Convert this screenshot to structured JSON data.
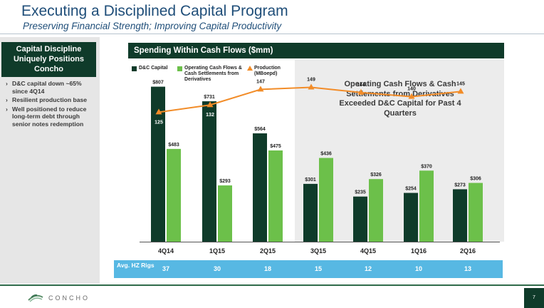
{
  "header": {
    "title": "Executing a Disciplined Capital Program",
    "subtitle": "Preserving Financial Strength; Improving Capital Productivity"
  },
  "left_panel": {
    "heading": "Capital Discipline Uniquely Positions Concho",
    "bullets": [
      "D&C capital down ~65% since 4Q14",
      "Resilient production base",
      "Well positioned to reduce long-term debt through senior notes redemption"
    ]
  },
  "chart_header": "Spending Within Cash Flows ($mm)",
  "legend": {
    "dc": "D&C Capital",
    "ocf": "Operating Cash Flows & Cash Settlements from Derivatives",
    "prod": "Production (MBoepd)"
  },
  "callout": "Operating Cash Flows & Cash Settlements from Derivatives Exceeded D&C Capital for Past 4 Quarters",
  "rigs": {
    "label": "Avg. HZ Rigs",
    "values": [
      "37",
      "30",
      "18",
      "15",
      "12",
      "10",
      "13"
    ]
  },
  "footer": {
    "brand": "CONCHO",
    "page": "7"
  },
  "colors": {
    "dark_green": "#0f3b2a",
    "light_green": "#6cc04a",
    "orange": "#f28c28",
    "rig_blue": "#57b8e3"
  },
  "chart_data": {
    "type": "bar",
    "categories": [
      "4Q14",
      "1Q15",
      "2Q15",
      "3Q15",
      "4Q15",
      "1Q16",
      "2Q16"
    ],
    "series": [
      {
        "name": "D&C Capital",
        "values": [
          807,
          731,
          564,
          301,
          235,
          254,
          273
        ],
        "labels": [
          "$807",
          "$731",
          "$564",
          "$301",
          "$235",
          "$254",
          "$273"
        ]
      },
      {
        "name": "Operating Cash Flows & Cash Settlements from Derivatives",
        "values": [
          483,
          293,
          475,
          436,
          326,
          370,
          306
        ],
        "labels": [
          "$483",
          "$293",
          "$475",
          "$436",
          "$326",
          "$370",
          "$306"
        ]
      }
    ],
    "line": {
      "name": "Production (MBoepd)",
      "values": [
        125,
        132,
        147,
        149,
        144,
        140,
        145
      ],
      "labels": [
        "125",
        "132",
        "147",
        "149",
        "144",
        "140",
        "145"
      ]
    },
    "ylim": [
      0,
      850
    ],
    "line_ylim": [
      0,
      170
    ]
  }
}
